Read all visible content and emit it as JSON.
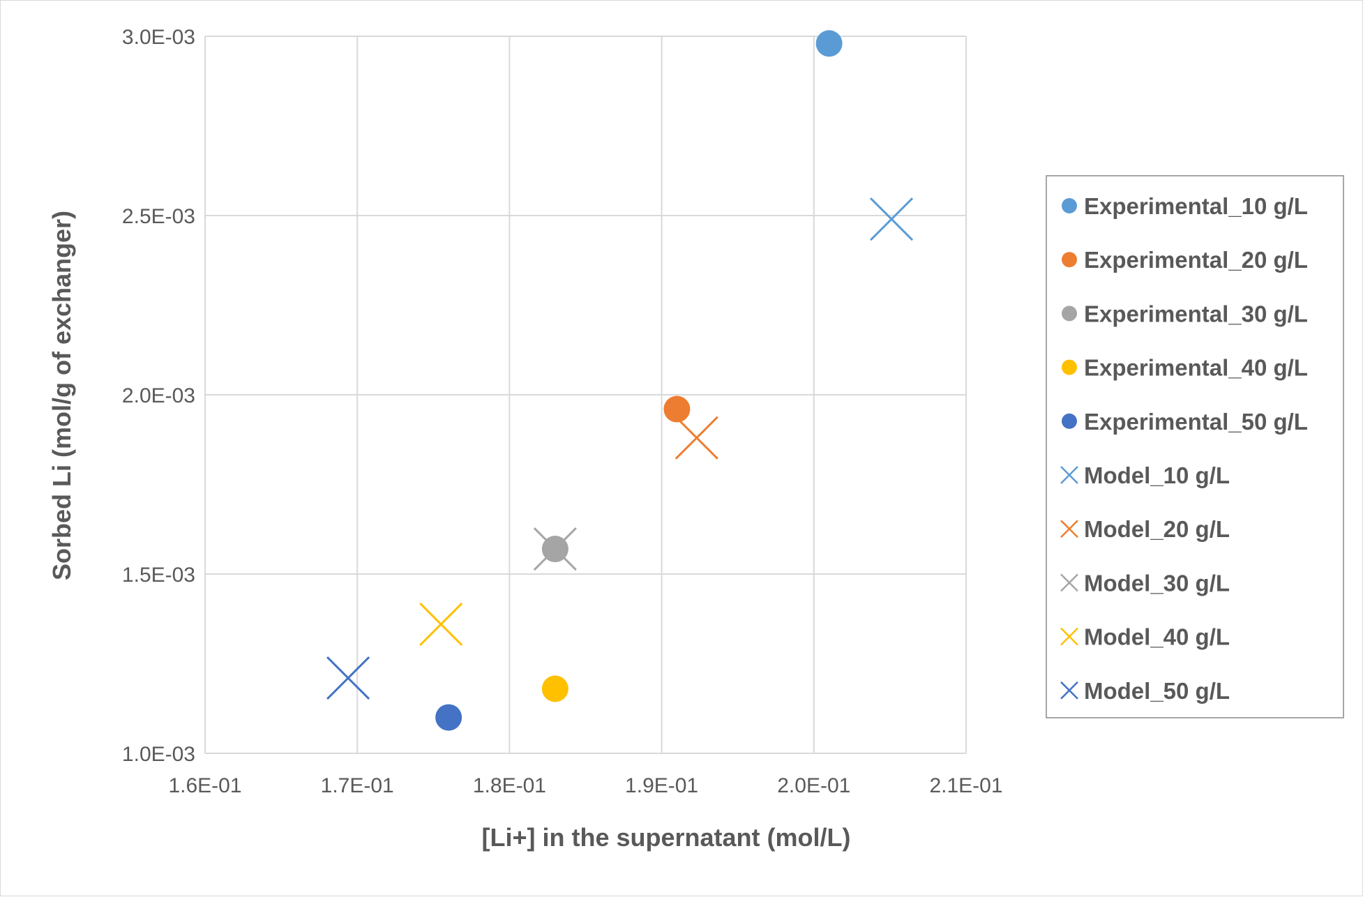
{
  "chart_data": {
    "type": "scatter",
    "xlabel": "[Li+] in the supernatant (mol/L)",
    "ylabel": "Sorbed Li (mol/g of exchanger)",
    "xlim": [
      0.16,
      0.21
    ],
    "ylim": [
      0.001,
      0.003
    ],
    "x_ticks": [
      0.16,
      0.17,
      0.18,
      0.19,
      0.2,
      0.21
    ],
    "x_tick_labels": [
      "1.6E-01",
      "1.7E-01",
      "1.8E-01",
      "1.9E-01",
      "2.0E-01",
      "2.1E-01"
    ],
    "y_ticks": [
      0.001,
      0.0015,
      0.002,
      0.0025,
      0.003
    ],
    "y_tick_labels": [
      "1.0E-03",
      "1.5E-03",
      "2.0E-03",
      "2.5E-03",
      "3.0E-03"
    ],
    "grid": true,
    "legend_position": "right",
    "series": [
      {
        "name": "Experimental_10 g/L",
        "marker": "circle",
        "color": "#5B9BD5",
        "points": [
          [
            0.201,
            0.00298
          ]
        ]
      },
      {
        "name": "Experimental_20 g/L",
        "marker": "circle",
        "color": "#ED7D31",
        "points": [
          [
            0.191,
            0.00196
          ]
        ]
      },
      {
        "name": "Experimental_30 g/L",
        "marker": "circle",
        "color": "#A5A5A5",
        "points": [
          [
            0.183,
            0.00157
          ]
        ]
      },
      {
        "name": "Experimental_40 g/L",
        "marker": "circle",
        "color": "#FFC000",
        "points": [
          [
            0.183,
            0.00118
          ]
        ]
      },
      {
        "name": "Experimental_50 g/L",
        "marker": "circle",
        "color": "#4472C4",
        "points": [
          [
            0.176,
            0.0011
          ]
        ]
      },
      {
        "name": "Model_10 g/L",
        "marker": "x",
        "color": "#5B9BD5",
        "points": [
          [
            0.2051,
            0.00249
          ]
        ]
      },
      {
        "name": "Model_20 g/L",
        "marker": "x",
        "color": "#ED7D31",
        "points": [
          [
            0.1923,
            0.00188
          ]
        ]
      },
      {
        "name": "Model_30 g/L",
        "marker": "x",
        "color": "#A5A5A5",
        "points": [
          [
            0.183,
            0.00157
          ]
        ]
      },
      {
        "name": "Model_40 g/L",
        "marker": "x",
        "color": "#FFC000",
        "points": [
          [
            0.1755,
            0.00136
          ]
        ]
      },
      {
        "name": "Model_50 g/L",
        "marker": "x",
        "color": "#4472C4",
        "points": [
          [
            0.1694,
            0.00121
          ]
        ]
      }
    ]
  }
}
